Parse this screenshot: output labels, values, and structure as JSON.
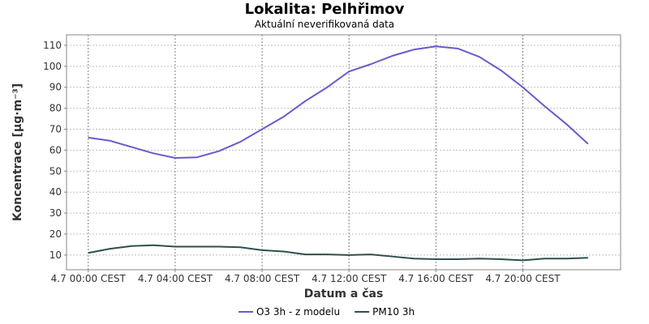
{
  "chart_data": {
    "type": "line",
    "title": "Lokalita: Pelhřimov",
    "subtitle": "Aktuální neverifikovaná data",
    "xlabel": "Datum a čas",
    "ylabel": "Koncentrace [µg·m⁻³]",
    "ylim": [
      3,
      115
    ],
    "yticks": [
      10,
      20,
      30,
      40,
      50,
      60,
      70,
      80,
      90,
      100,
      110
    ],
    "x_start": "4.7 00:00",
    "x_step_hours": 1,
    "xlim_hours": [
      -1,
      24.5
    ],
    "xticks": [
      {
        "hour": 0,
        "label": "4.7 00:00 CEST"
      },
      {
        "hour": 4,
        "label": "4.7 04:00 CEST"
      },
      {
        "hour": 8,
        "label": "4.7 08:00 CEST"
      },
      {
        "hour": 12,
        "label": "4.7 12:00 CEST"
      },
      {
        "hour": 16,
        "label": "4.7 16:00 CEST"
      },
      {
        "hour": 20,
        "label": "4.7 20:00 CEST"
      }
    ],
    "grid": true,
    "legend_position": "bottom",
    "series": [
      {
        "name": "O3 3h - z modelu",
        "color": "#6a5acd",
        "values": [
          66,
          64.5,
          61.5,
          58.5,
          56.3,
          56.6,
          59.5,
          64,
          70,
          76,
          83.5,
          90,
          97.5,
          101,
          105,
          108,
          109.5,
          108.5,
          104.5,
          98,
          90,
          81,
          72.5,
          63
        ]
      },
      {
        "name": "PM10 3h",
        "color": "#2f4f4f",
        "values": [
          11,
          13,
          14.3,
          14.7,
          14,
          14,
          14,
          13.7,
          12.3,
          11.7,
          10.3,
          10.3,
          10,
          10.3,
          9.3,
          8.3,
          8,
          8,
          8.3,
          8,
          7.5,
          8.3,
          8.3,
          8.7
        ]
      }
    ]
  }
}
